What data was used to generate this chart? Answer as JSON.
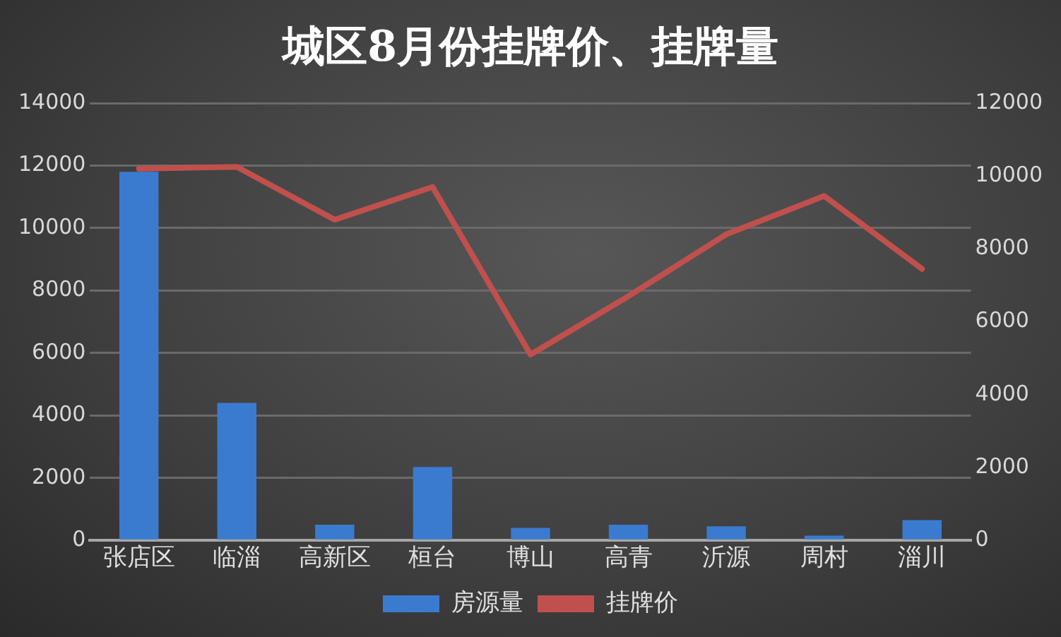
{
  "chart_data": {
    "type": "bar",
    "title": "城区8月份挂牌价、挂牌量",
    "categories": [
      "张店区",
      "临淄",
      "高新区",
      "桓台",
      "博山",
      "高青",
      "沂源",
      "周村",
      "淄川"
    ],
    "series": [
      {
        "name": "房源量",
        "color": "#3a7bd0",
        "values": [
          11800,
          4400,
          500,
          2350,
          400,
          500,
          450,
          150,
          650
        ]
      },
      {
        "name": "挂牌价",
        "type": "line",
        "axis": "y2",
        "color": "#c0504d",
        "values": [
          10200,
          10250,
          8800,
          9700,
          5100,
          6700,
          8400,
          9450,
          7450
        ]
      }
    ],
    "ylim": [
      0,
      14000
    ],
    "yticks": [
      0,
      2000,
      4000,
      6000,
      8000,
      10000,
      12000,
      14000
    ],
    "y2lim": [
      0,
      12000
    ],
    "y2ticks": [
      0,
      2000,
      4000,
      6000,
      8000,
      10000,
      12000
    ],
    "grid": "y",
    "legend": "bottom",
    "marker": "none",
    "line_style": "solid"
  }
}
